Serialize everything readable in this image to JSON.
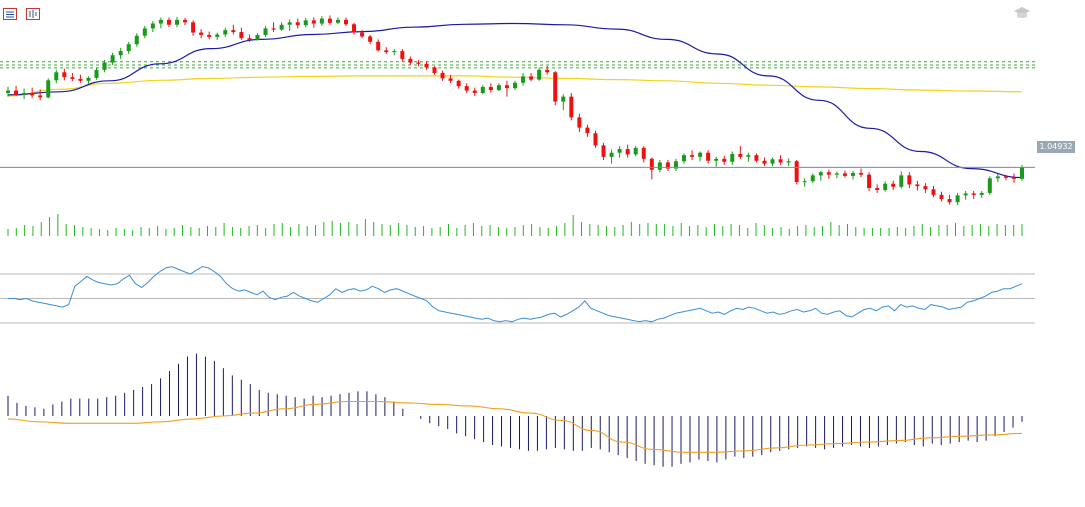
{
  "toolbar": {
    "icons": [
      "chart-list-icon",
      "chart-properties-icon"
    ],
    "corner_icon": "graduation-cap-icon"
  },
  "colors": {
    "bull": "#1a9a1a",
    "bear": "#ee1111",
    "ma_fast": "#1a1aa8",
    "ma_slow": "#f2d21a",
    "rsi": "#3a8fd8",
    "macd_hist": "#1a1a66",
    "macd_signal": "#f0a020",
    "price_line": "#6e8da8",
    "level_line": "#3aaa3a",
    "volume": "#22b822",
    "guide": "#b8b8b8"
  },
  "chart_data": [
    {
      "type": "candlestick",
      "last_price_label": "1.04932",
      "candles": [
        [
          1.083,
          1.0855,
          1.0815,
          1.084
        ],
        [
          1.084,
          1.086,
          1.0818,
          1.0822
        ],
        [
          1.0822,
          1.0848,
          1.0805,
          1.083
        ],
        [
          1.083,
          1.0852,
          1.081,
          1.082
        ],
        [
          1.082,
          1.0845,
          1.08,
          1.0812
        ],
        [
          1.0812,
          1.089,
          1.0808,
          1.0882
        ],
        [
          1.0882,
          1.0925,
          1.087,
          1.0915
        ],
        [
          1.0915,
          1.093,
          1.0882,
          1.0895
        ],
        [
          1.0895,
          1.0912,
          1.0878,
          1.0888
        ],
        [
          1.0888,
          1.0905,
          1.0872,
          1.088
        ],
        [
          1.088,
          1.0898,
          1.0868,
          1.0892
        ],
        [
          1.0892,
          1.0935,
          1.0885,
          1.0925
        ],
        [
          1.0925,
          1.0965,
          1.0915,
          1.0955
        ],
        [
          1.0955,
          1.0995,
          1.0945,
          1.0985
        ],
        [
          1.0985,
          1.1015,
          1.097,
          1.1002
        ],
        [
          1.1002,
          1.104,
          1.099,
          1.103
        ],
        [
          1.103,
          1.1075,
          1.102,
          1.1065
        ],
        [
          1.1065,
          1.1105,
          1.1055,
          1.1095
        ],
        [
          1.1095,
          1.1125,
          1.108,
          1.1115
        ],
        [
          1.1115,
          1.114,
          1.1095,
          1.113
        ],
        [
          1.113,
          1.114,
          1.11,
          1.111
        ],
        [
          1.111,
          1.1142,
          1.11,
          1.113
        ],
        [
          1.113,
          1.1138,
          1.1108,
          1.112
        ],
        [
          1.112,
          1.1128,
          1.1065,
          1.1078
        ],
        [
          1.1078,
          1.1092,
          1.1055,
          1.1068
        ],
        [
          1.1068,
          1.1082,
          1.105,
          1.106
        ],
        [
          1.106,
          1.1078,
          1.1048,
          1.107
        ],
        [
          1.107,
          1.1098,
          1.106,
          1.1088
        ],
        [
          1.1088,
          1.111,
          1.107,
          1.108
        ],
        [
          1.108,
          1.1098,
          1.1048,
          1.1055
        ],
        [
          1.1055,
          1.107,
          1.104,
          1.1048
        ],
        [
          1.1048,
          1.1075,
          1.1045,
          1.1068
        ],
        [
          1.1068,
          1.1105,
          1.106,
          1.1095
        ],
        [
          1.1095,
          1.112,
          1.108,
          1.109
        ],
        [
          1.109,
          1.112,
          1.1085,
          1.111
        ],
        [
          1.111,
          1.1132,
          1.1085,
          1.112
        ],
        [
          1.112,
          1.1135,
          1.1095,
          1.1108
        ],
        [
          1.1108,
          1.1138,
          1.11,
          1.1128
        ],
        [
          1.1128,
          1.114,
          1.1098,
          1.1115
        ],
        [
          1.1115,
          1.1145,
          1.1105,
          1.1135
        ],
        [
          1.1135,
          1.1148,
          1.111,
          1.1118
        ],
        [
          1.1118,
          1.114,
          1.1112,
          1.113
        ],
        [
          1.113,
          1.114,
          1.1105,
          1.1112
        ],
        [
          1.1112,
          1.1118,
          1.107,
          1.1078
        ],
        [
          1.1078,
          1.1088,
          1.1055,
          1.1062
        ],
        [
          1.1062,
          1.1068,
          1.103,
          1.104
        ],
        [
          1.104,
          1.105,
          1.1,
          1.1005
        ],
        [
          1.1005,
          1.1018,
          1.099,
          1.0998
        ],
        [
          1.0998,
          1.101,
          1.0985,
          1.1002
        ],
        [
          1.1002,
          1.101,
          1.096,
          1.097
        ],
        [
          1.097,
          1.098,
          1.0945,
          1.0955
        ],
        [
          1.0955,
          1.0965,
          1.094,
          1.095
        ],
        [
          1.095,
          1.096,
          1.0925,
          1.0935
        ],
        [
          1.0935,
          1.094,
          1.0905,
          1.0912
        ],
        [
          1.0912,
          1.0922,
          1.088,
          1.089
        ],
        [
          1.089,
          1.0905,
          1.087,
          1.088
        ],
        [
          1.088,
          1.0885,
          1.0848,
          1.0858
        ],
        [
          1.0858,
          1.087,
          1.083,
          1.084
        ],
        [
          1.084,
          1.0852,
          1.0818,
          1.083
        ],
        [
          1.083,
          1.0862,
          1.0825,
          1.0855
        ],
        [
          1.0855,
          1.087,
          1.0832,
          1.0842
        ],
        [
          1.0842,
          1.087,
          1.0838,
          1.0862
        ],
        [
          1.0862,
          1.088,
          1.0815,
          1.085
        ],
        [
          1.085,
          1.088,
          1.0842,
          1.0872
        ],
        [
          1.0872,
          1.0912,
          1.086,
          1.0898
        ],
        [
          1.0898,
          1.0912,
          1.0878,
          1.0885
        ],
        [
          1.0885,
          1.0935,
          1.088,
          1.0925
        ],
        [
          1.0925,
          1.094,
          1.0905,
          1.0915
        ],
        [
          1.0915,
          1.092,
          1.078,
          1.0795
        ],
        [
          1.0795,
          1.0825,
          1.076,
          1.0815
        ],
        [
          1.0815,
          1.083,
          1.0718,
          1.073
        ],
        [
          1.073,
          1.0745,
          1.067,
          1.0688
        ],
        [
          1.0688,
          1.07,
          1.065,
          1.0665
        ],
        [
          1.0665,
          1.0675,
          1.0605,
          1.0615
        ],
        [
          1.0615,
          1.0625,
          1.0555,
          1.0568
        ],
        [
          1.0568,
          1.0598,
          1.054,
          1.0585
        ],
        [
          1.0585,
          1.0612,
          1.0565,
          1.06
        ],
        [
          1.06,
          1.0618,
          1.0565,
          1.0578
        ],
        [
          1.0578,
          1.0612,
          1.057,
          1.0605
        ],
        [
          1.0605,
          1.0612,
          1.0545,
          1.056
        ],
        [
          1.056,
          1.0565,
          1.0475,
          1.0515
        ],
        [
          1.0515,
          1.0555,
          1.0505,
          1.0545
        ],
        [
          1.0545,
          1.0555,
          1.051,
          1.052
        ],
        [
          1.052,
          1.056,
          1.051,
          1.055
        ],
        [
          1.055,
          1.0582,
          1.054,
          1.0575
        ],
        [
          1.0575,
          1.0595,
          1.0555,
          1.0568
        ],
        [
          1.0568,
          1.059,
          1.055,
          1.0585
        ],
        [
          1.0585,
          1.0595,
          1.054,
          1.0552
        ],
        [
          1.0552,
          1.0568,
          1.0528,
          1.056
        ],
        [
          1.056,
          1.0572,
          1.0535,
          1.0548
        ],
        [
          1.0548,
          1.059,
          1.0535,
          1.058
        ],
        [
          1.058,
          1.0612,
          1.056,
          1.0568
        ],
        [
          1.0568,
          1.0585,
          1.0548,
          1.0575
        ],
        [
          1.0575,
          1.0582,
          1.0545,
          1.0552
        ],
        [
          1.0552,
          1.0565,
          1.053,
          1.054
        ],
        [
          1.054,
          1.0565,
          1.053,
          1.0558
        ],
        [
          1.0558,
          1.0575,
          1.0535,
          1.0545
        ],
        [
          1.0545,
          1.0562,
          1.053,
          1.055
        ],
        [
          1.055,
          1.0555,
          1.0455,
          1.0465
        ],
        [
          1.0465,
          1.048,
          1.0445,
          1.0468
        ],
        [
          1.0468,
          1.05,
          1.046,
          1.0492
        ],
        [
          1.0492,
          1.051,
          1.047,
          1.0505
        ],
        [
          1.0505,
          1.0515,
          1.0478,
          1.0495
        ],
        [
          1.0495,
          1.0508,
          1.048,
          1.05
        ],
        [
          1.05,
          1.0512,
          1.0482,
          1.049
        ],
        [
          1.049,
          1.051,
          1.0475,
          1.0502
        ],
        [
          1.0502,
          1.052,
          1.0485,
          1.0495
        ],
        [
          1.0495,
          1.0505,
          1.0428,
          1.044
        ],
        [
          1.044,
          1.0455,
          1.042,
          1.0432
        ],
        [
          1.0432,
          1.0468,
          1.0425,
          1.0458
        ],
        [
          1.0458,
          1.047,
          1.0432,
          1.0445
        ],
        [
          1.0445,
          1.0508,
          1.0438,
          1.0492
        ],
        [
          1.0492,
          1.0505,
          1.044,
          1.0455
        ],
        [
          1.0455,
          1.047,
          1.043,
          1.0448
        ],
        [
          1.0448,
          1.046,
          1.042,
          1.0435
        ],
        [
          1.0435,
          1.0448,
          1.0402,
          1.0412
        ],
        [
          1.0412,
          1.0425,
          1.0385,
          1.0395
        ],
        [
          1.0395,
          1.0412,
          1.0372,
          1.0382
        ],
        [
          1.0382,
          1.042,
          1.037,
          1.041
        ],
        [
          1.041,
          1.0428,
          1.0392,
          1.0418
        ],
        [
          1.0418,
          1.0428,
          1.0395,
          1.0412
        ],
        [
          1.0412,
          1.0428,
          1.04,
          1.042
        ],
        [
          1.042,
          1.0488,
          1.0412,
          1.048
        ],
        [
          1.048,
          1.0498,
          1.0465,
          1.0488
        ],
        [
          1.0488,
          1.0495,
          1.0472,
          1.0482
        ],
        [
          1.0482,
          1.05,
          1.0462,
          1.0478
        ],
        [
          1.0478,
          1.0535,
          1.047,
          1.0525
        ]
      ],
      "ma_fast": [
        1.0822,
        1.0835,
        1.088,
        1.095,
        1.1012,
        1.105,
        1.107,
        1.1082,
        1.11,
        1.1112,
        1.1115,
        1.111,
        1.1092,
        1.105,
        1.099,
        1.09,
        1.08,
        1.0685,
        1.059,
        1.052,
        1.0483
      ],
      "ma_slow": [
        1.0818,
        1.0845,
        1.087,
        1.0882,
        1.089,
        1.0895,
        1.0898,
        1.09,
        1.09,
        1.09,
        1.0895,
        1.089,
        1.0885,
        1.088,
        1.087,
        1.0862,
        1.0855,
        1.0848,
        1.0842,
        1.0838,
        1.0835
      ],
      "horizontal_levels": [
        1.0958,
        1.0945,
        1.0933
      ],
      "volume": [
        7,
        8,
        11,
        10,
        14,
        19,
        22,
        12,
        11,
        9,
        8,
        7,
        6,
        8,
        7,
        6,
        9,
        8,
        10,
        7,
        8,
        11,
        9,
        8,
        10,
        9,
        13,
        9,
        8,
        10,
        11,
        8,
        12,
        13,
        9,
        12,
        10,
        11,
        14,
        15,
        13,
        14,
        12,
        17,
        14,
        12,
        11,
        13,
        11,
        9,
        10,
        8,
        9,
        12,
        8,
        11,
        13,
        10,
        11,
        9,
        8,
        9,
        11,
        12,
        9,
        8,
        10,
        13,
        21,
        14,
        12,
        11,
        10,
        9,
        11,
        14,
        12,
        13,
        12,
        12,
        10,
        13,
        10,
        11,
        9,
        12,
        10,
        12,
        11,
        8,
        13,
        11,
        8,
        9,
        7,
        10,
        11,
        9,
        10,
        14,
        11,
        12,
        9,
        8,
        8,
        8,
        8,
        9,
        8,
        10,
        12,
        9,
        11,
        11,
        13,
        10,
        11,
        12,
        10,
        12,
        11,
        11,
        12
      ]
    },
    {
      "type": "line",
      "indicator": "oscillator",
      "reference_levels": [
        70,
        50,
        30
      ],
      "values": [
        50,
        50,
        49,
        50,
        48,
        47,
        46,
        45,
        44,
        43,
        45,
        60,
        64,
        68,
        65,
        63,
        62,
        61,
        62,
        66,
        69,
        62,
        59,
        63,
        68,
        72,
        75,
        76,
        74,
        72,
        70,
        73,
        76,
        75,
        72,
        68,
        62,
        58,
        56,
        57,
        55,
        53,
        56,
        51,
        49,
        51,
        52,
        55,
        52,
        50,
        48,
        47,
        50,
        53,
        58,
        55,
        57,
        58,
        56,
        57,
        60,
        58,
        55,
        57,
        58,
        56,
        54,
        52,
        50,
        48,
        43,
        40,
        39,
        38,
        37,
        36,
        35,
        34,
        33,
        34,
        32,
        31,
        32,
        31,
        33,
        34,
        33,
        34,
        35,
        37,
        38,
        35,
        37,
        40,
        43,
        48,
        42,
        40,
        38,
        36,
        35,
        34,
        33,
        32,
        31,
        32,
        31,
        33,
        34,
        36,
        38,
        39,
        40,
        41,
        42,
        40,
        38,
        39,
        37,
        40,
        42,
        41,
        43,
        42,
        40,
        38,
        39,
        37,
        38,
        40,
        41,
        39,
        40,
        42,
        38,
        37,
        39,
        40,
        36,
        35,
        38,
        41,
        42,
        40,
        43,
        44,
        40,
        45,
        43,
        44,
        42,
        41,
        45,
        44,
        43,
        41,
        42,
        43,
        47,
        48,
        50,
        52,
        55,
        56,
        58,
        58,
        60,
        62
      ]
    },
    {
      "type": "bar",
      "indicator": "histogram",
      "values": [
        14,
        9,
        7,
        6,
        5,
        8,
        10,
        12,
        12,
        12,
        12,
        13,
        14,
        16,
        18,
        20,
        22,
        26,
        31,
        36,
        41,
        43,
        41,
        38,
        33,
        28,
        25,
        22,
        18,
        16,
        15,
        14,
        13,
        12,
        14,
        13,
        14,
        15,
        16,
        17,
        17,
        15,
        13,
        10,
        5,
        0,
        -2,
        -5,
        -7,
        -9,
        -12,
        -14,
        -16,
        -18,
        -20,
        -21,
        -22,
        -23,
        -24,
        -24,
        -23,
        -22,
        -23,
        -24,
        -24,
        -22,
        -23,
        -25,
        -27,
        -29,
        -31,
        -33,
        -34,
        -35,
        -35,
        -33,
        -32,
        -30,
        -31,
        -32,
        -30,
        -28,
        -29,
        -28,
        -27,
        -25,
        -24,
        -23,
        -22,
        -21,
        -22,
        -23,
        -22,
        -21,
        -20,
        -21,
        -22,
        -21,
        -20,
        -19,
        -18,
        -20,
        -21,
        -19,
        -20,
        -19,
        -18,
        -17,
        -18,
        -17,
        -14,
        -11,
        -8,
        -4
      ],
      "signal": [
        -2,
        -4,
        -5,
        -5,
        -5,
        -4,
        -2,
        0,
        2,
        5,
        8,
        10,
        10,
        9,
        8,
        7,
        5,
        2,
        -3,
        -10,
        -18,
        -23,
        -25,
        -25,
        -24,
        -22,
        -20,
        -19,
        -18,
        -17,
        -15,
        -14,
        -13,
        -12
      ]
    }
  ]
}
